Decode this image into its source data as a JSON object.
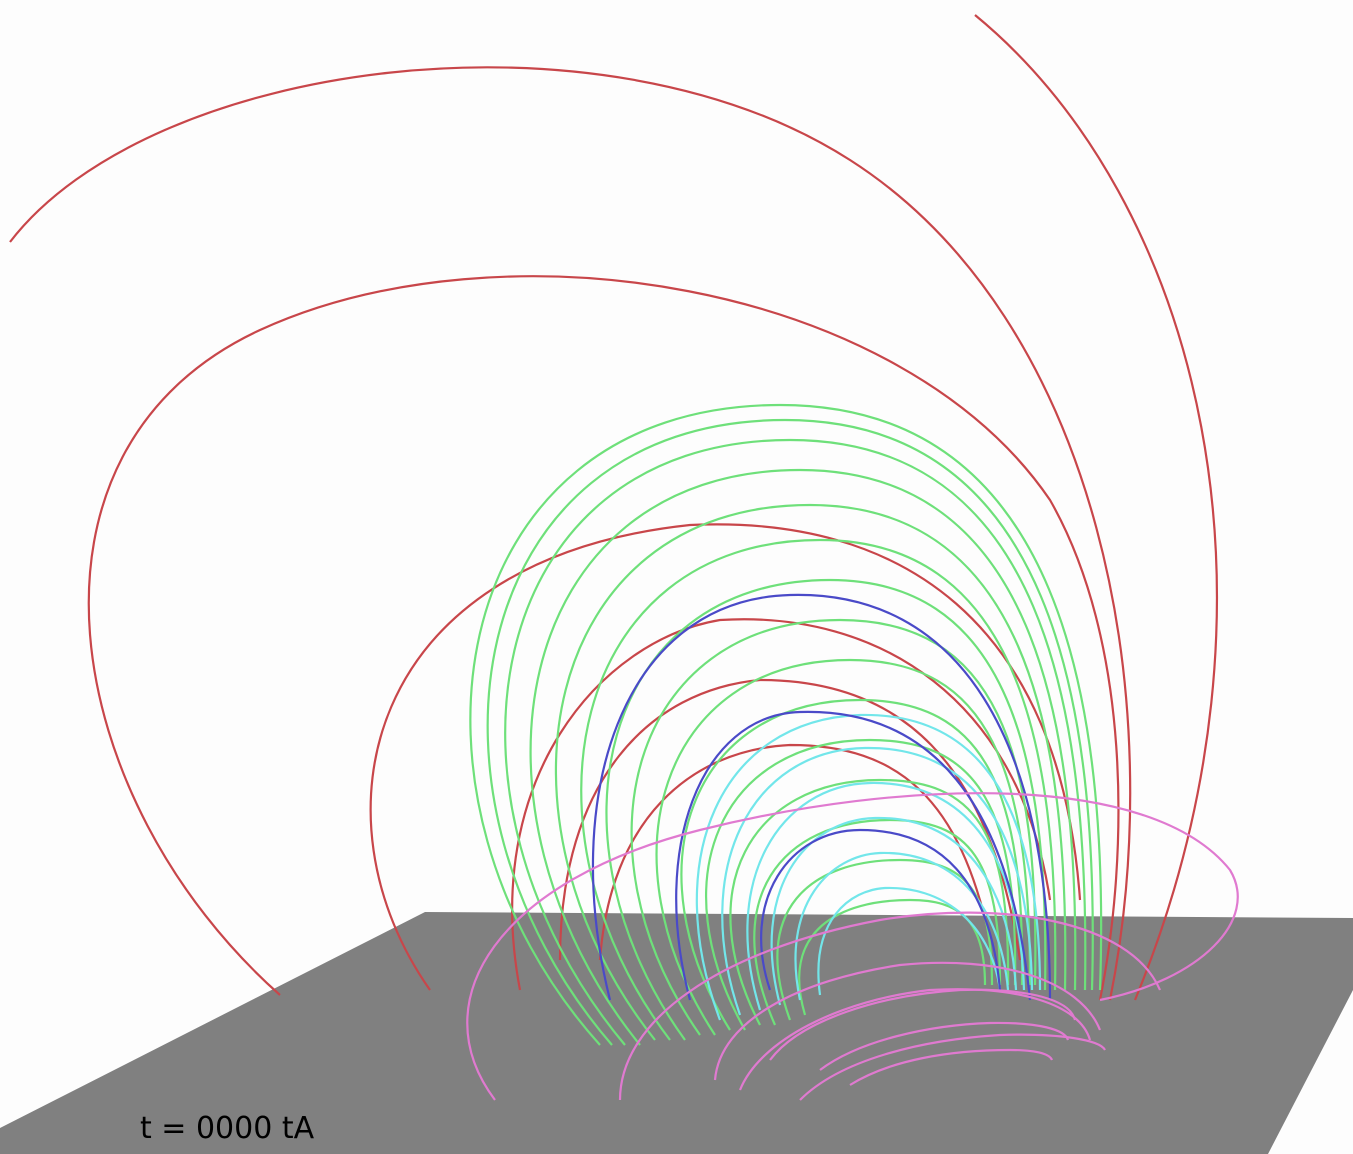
{
  "time_label": "t = 0000 tA"
}
